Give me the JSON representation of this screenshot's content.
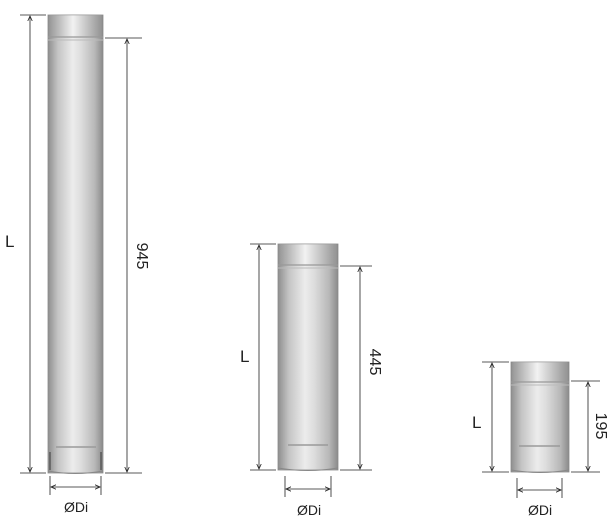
{
  "pipes": [
    {
      "id": "long",
      "length_label": "L",
      "dimension_value": "945",
      "diameter_label": "ØDi"
    },
    {
      "id": "medium",
      "length_label": "L",
      "dimension_value": "445",
      "diameter_label": "ØDi"
    },
    {
      "id": "short",
      "length_label": "L",
      "dimension_value": "195",
      "diameter_label": "ØDi"
    }
  ],
  "colors": {
    "line": "#222222",
    "pipe_mid": "#d6d6d6",
    "pipe_dark": "#8e8e8e",
    "pipe_light": "#f4f4f4",
    "groove": "#9a9a9a"
  }
}
